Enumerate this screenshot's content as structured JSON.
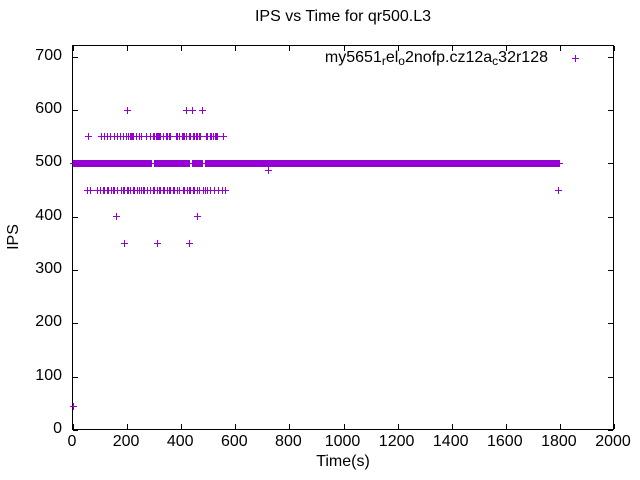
{
  "chart_data": {
    "type": "scatter",
    "title": "IPS vs Time for qr500.L3",
    "xlabel": "Time(s)",
    "ylabel": "IPS",
    "xlim": [
      0,
      2000
    ],
    "ylim": [
      0,
      720
    ],
    "xticks": [
      0,
      200,
      400,
      600,
      800,
      1000,
      1200,
      1400,
      1600,
      1800,
      2000
    ],
    "yticks": [
      0,
      100,
      200,
      300,
      400,
      500,
      600,
      700
    ],
    "grid": false,
    "marker": "plus",
    "color": "#9400D3",
    "legend": {
      "position": "top-right-inside",
      "label_raw": "my5651_rel_o2nofp.cz12a_c32r128",
      "segments": [
        {
          "text": "my5651",
          "sub": false
        },
        {
          "text": "r",
          "sub": true
        },
        {
          "text": "el",
          "sub": false
        },
        {
          "text": "o",
          "sub": true
        },
        {
          "text": "2nofp.cz12a",
          "sub": false
        },
        {
          "text": "c",
          "sub": true
        },
        {
          "text": "32r128",
          "sub": false
        }
      ]
    },
    "series": [
      {
        "name": "my5651_rel_o2nofp.cz12a_c32r128",
        "marker": "plus",
        "color": "#9400D3",
        "band": {
          "ips": 500,
          "t_start": 3,
          "t_end": 1800,
          "t_step": 3.5,
          "gaps": [
            [
              293,
              300
            ],
            [
              432,
              440
            ],
            [
              480,
              487
            ]
          ]
        },
        "clusters": [
          {
            "ips": 600,
            "times": [
              203,
              420,
              443,
              480
            ]
          },
          {
            "ips": 550,
            "times": [
              59,
              107,
              118,
              129,
              140,
              155,
              163,
              177,
              185,
              196,
              207,
              211,
              215,
              219,
              224,
              233,
              244,
              255,
              270,
              285,
              296,
              303,
              307,
              311,
              316,
              320,
              325,
              333,
              344,
              348,
              355,
              359,
              381,
              385,
              392,
              403,
              407,
              414,
              418,
              429,
              433,
              444,
              448,
              455,
              459,
              466,
              470,
              492,
              496,
              507,
              511,
              521,
              525,
              532,
              536,
              558
            ]
          },
          {
            "ips": 487,
            "times": [
              721
            ]
          },
          {
            "ips": 450,
            "times": [
              55,
              63,
              90,
              101,
              111,
              118,
              126,
              133,
              141,
              148,
              155,
              163,
              178,
              185,
              192,
              200,
              207,
              214,
              222,
              229,
              237,
              244,
              252,
              259,
              266,
              274,
              288,
              296,
              303,
              311,
              318,
              325,
              333,
              340,
              348,
              355,
              362,
              370,
              377,
              385,
              392,
              407,
              414,
              422,
              429,
              436,
              444,
              451,
              459,
              466,
              481,
              488,
              496,
              510,
              524,
              539,
              551,
              562,
              1795
            ]
          },
          {
            "ips": 400,
            "times": [
              162,
              460
            ]
          },
          {
            "ips": 350,
            "times": [
              192,
              314,
              432
            ]
          },
          {
            "ips": 45,
            "times": [
              2
            ]
          }
        ]
      }
    ]
  }
}
